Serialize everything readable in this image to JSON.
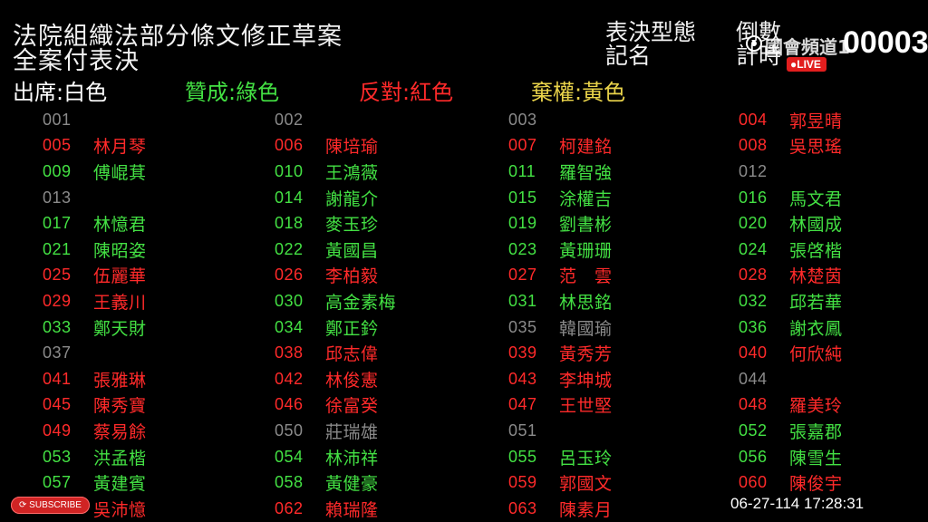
{
  "header": {
    "title_line1": "法院組織法部分條文修正草案",
    "title_line2": "全案付表決",
    "vote_type_label": "表決型態",
    "vote_type_value": "倒數",
    "named_label": "記名",
    "named_value": "計時",
    "countdown": "00003",
    "channel_logo_text": "國會頻道1",
    "live_label": "LIVE"
  },
  "legend": {
    "present": "出席:白色",
    "yes": "贊成:綠色",
    "no": "反對:紅色",
    "abstain": "棄權:黃色"
  },
  "colors": {
    "present": "#ffffff",
    "yes": "#43e043",
    "no": "#ff2a2a",
    "abstain": "#e9d34a",
    "absent": "#8a8a8a",
    "background": "#000000"
  },
  "columns": [
    [
      {
        "num": "001",
        "name": "",
        "status": "absent"
      },
      {
        "num": "005",
        "name": "林月琴",
        "status": "no"
      },
      {
        "num": "009",
        "name": "傅崐萁",
        "status": "yes"
      },
      {
        "num": "013",
        "name": "",
        "status": "absent"
      },
      {
        "num": "017",
        "name": "林憶君",
        "status": "yes"
      },
      {
        "num": "021",
        "name": "陳昭姿",
        "status": "yes"
      },
      {
        "num": "025",
        "name": "伍麗華",
        "status": "no"
      },
      {
        "num": "029",
        "name": "王義川",
        "status": "no"
      },
      {
        "num": "033",
        "name": "鄭天財",
        "status": "yes"
      },
      {
        "num": "037",
        "name": "",
        "status": "absent"
      },
      {
        "num": "041",
        "name": "張雅琳",
        "status": "no"
      },
      {
        "num": "045",
        "name": "陳秀寶",
        "status": "no"
      },
      {
        "num": "049",
        "name": "蔡易餘",
        "status": "no"
      },
      {
        "num": "053",
        "name": "洪孟楷",
        "status": "yes"
      },
      {
        "num": "057",
        "name": "黃建賓",
        "status": "yes"
      },
      {
        "num": "061",
        "name": "吳沛憶",
        "status": "no"
      }
    ],
    [
      {
        "num": "002",
        "name": "",
        "status": "absent"
      },
      {
        "num": "006",
        "name": "陳培瑜",
        "status": "no"
      },
      {
        "num": "010",
        "name": "王鴻薇",
        "status": "yes"
      },
      {
        "num": "014",
        "name": "謝龍介",
        "status": "yes"
      },
      {
        "num": "018",
        "name": "麥玉珍",
        "status": "yes"
      },
      {
        "num": "022",
        "name": "黃國昌",
        "status": "yes"
      },
      {
        "num": "026",
        "name": "李柏毅",
        "status": "no"
      },
      {
        "num": "030",
        "name": "高金素梅",
        "status": "yes"
      },
      {
        "num": "034",
        "name": "鄭正鈐",
        "status": "yes"
      },
      {
        "num": "038",
        "name": "邱志偉",
        "status": "no"
      },
      {
        "num": "042",
        "name": "林俊憲",
        "status": "no"
      },
      {
        "num": "046",
        "name": "徐富癸",
        "status": "no"
      },
      {
        "num": "050",
        "name": "莊瑞雄",
        "status": "absent"
      },
      {
        "num": "054",
        "name": "林沛祥",
        "status": "yes"
      },
      {
        "num": "058",
        "name": "黃健豪",
        "status": "yes"
      },
      {
        "num": "062",
        "name": "賴瑞隆",
        "status": "no"
      }
    ],
    [
      {
        "num": "003",
        "name": "",
        "status": "absent"
      },
      {
        "num": "007",
        "name": "柯建銘",
        "status": "no"
      },
      {
        "num": "011",
        "name": "羅智強",
        "status": "yes"
      },
      {
        "num": "015",
        "name": "涂權吉",
        "status": "yes"
      },
      {
        "num": "019",
        "name": "劉書彬",
        "status": "yes"
      },
      {
        "num": "023",
        "name": "黃珊珊",
        "status": "yes"
      },
      {
        "num": "027",
        "name": "范　雲",
        "status": "no"
      },
      {
        "num": "031",
        "name": "林思銘",
        "status": "yes"
      },
      {
        "num": "035",
        "name": "韓國瑜",
        "status": "absent"
      },
      {
        "num": "039",
        "name": "黃秀芳",
        "status": "no"
      },
      {
        "num": "043",
        "name": "李坤城",
        "status": "no"
      },
      {
        "num": "047",
        "name": "王世堅",
        "status": "no"
      },
      {
        "num": "051",
        "name": "",
        "status": "absent"
      },
      {
        "num": "055",
        "name": "呂玉玲",
        "status": "yes"
      },
      {
        "num": "059",
        "name": "郭國文",
        "status": "no"
      },
      {
        "num": "063",
        "name": "陳素月",
        "status": "no"
      }
    ],
    [
      {
        "num": "004",
        "name": "郭昱晴",
        "status": "no"
      },
      {
        "num": "008",
        "name": "吳思瑤",
        "status": "no"
      },
      {
        "num": "012",
        "name": "",
        "status": "absent"
      },
      {
        "num": "016",
        "name": "馬文君",
        "status": "yes"
      },
      {
        "num": "020",
        "name": "林國成",
        "status": "yes"
      },
      {
        "num": "024",
        "name": "張啓楷",
        "status": "yes"
      },
      {
        "num": "028",
        "name": "林楚茵",
        "status": "no"
      },
      {
        "num": "032",
        "name": "邱若華",
        "status": "yes"
      },
      {
        "num": "036",
        "name": "謝衣鳳",
        "status": "yes"
      },
      {
        "num": "040",
        "name": "何欣純",
        "status": "no"
      },
      {
        "num": "044",
        "name": "",
        "status": "absent"
      },
      {
        "num": "048",
        "name": "羅美玲",
        "status": "no"
      },
      {
        "num": "052",
        "name": "張嘉郡",
        "status": "yes"
      },
      {
        "num": "056",
        "name": "陳雪生",
        "status": "yes"
      },
      {
        "num": "060",
        "name": "陳俊宇",
        "status": "no"
      }
    ]
  ],
  "footer": {
    "datetime": "06-27-114 17:28:31",
    "subscribe_label": "SUBSCRIBE"
  }
}
